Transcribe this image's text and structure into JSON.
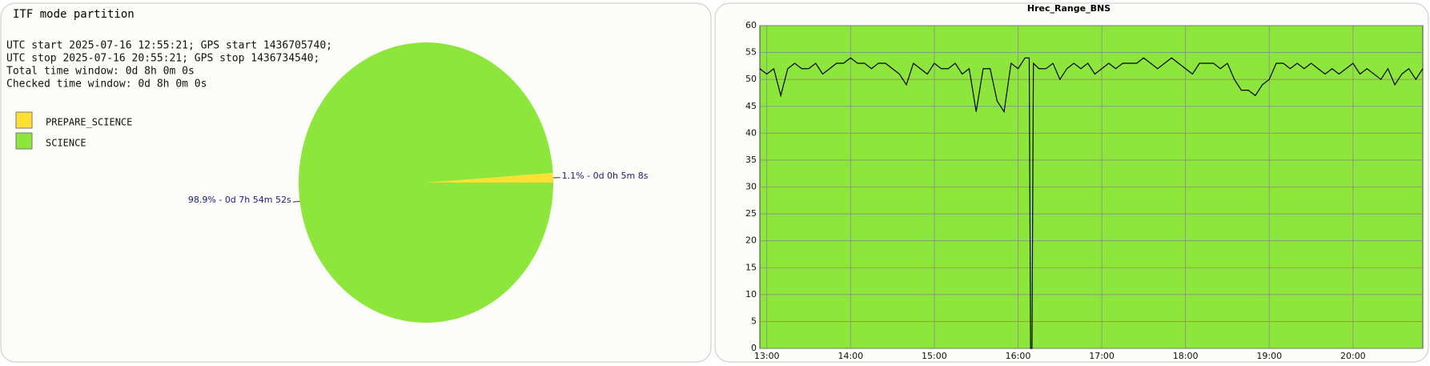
{
  "chart_data": [
    {
      "type": "pie",
      "title": "ITF mode partition",
      "info": [
        "UTC start 2025-07-16 12:55:21; GPS start 1436705740;",
        "UTC stop 2025-07-16 20:55:21; GPS stop 1436734540;",
        "Total time window: 0d 8h 0m 0s",
        "Checked time window: 0d 8h 0m 0s"
      ],
      "categories": [
        "PREPARE_SCIENCE",
        "SCIENCE"
      ],
      "values": [
        1.1,
        98.9
      ],
      "value_labels": [
        "1.1% - 0d 0h 5m 8s",
        "98.9% - 0d 7h 54m 52s"
      ],
      "colors": [
        "#ffe033",
        "#8de63c"
      ]
    },
    {
      "type": "line",
      "title": "Hrec_Range_BNS",
      "x": [
        "12:55",
        "13:00",
        "13:05",
        "13:10",
        "13:15",
        "13:20",
        "13:25",
        "13:30",
        "13:35",
        "13:40",
        "13:45",
        "13:50",
        "13:55",
        "14:00",
        "14:05",
        "14:10",
        "14:15",
        "14:20",
        "14:25",
        "14:30",
        "14:35",
        "14:40",
        "14:45",
        "14:50",
        "14:55",
        "15:00",
        "15:05",
        "15:10",
        "15:15",
        "15:20",
        "15:25",
        "15:30",
        "15:35",
        "15:40",
        "15:45",
        "15:50",
        "15:55",
        "16:00",
        "16:05",
        "16:08",
        "16:09",
        "16:10",
        "16:11",
        "16:15",
        "16:20",
        "16:25",
        "16:30",
        "16:35",
        "16:40",
        "16:45",
        "16:50",
        "16:55",
        "17:00",
        "17:05",
        "17:10",
        "17:15",
        "17:20",
        "17:25",
        "17:30",
        "17:35",
        "17:40",
        "17:45",
        "17:50",
        "17:55",
        "18:00",
        "18:05",
        "18:10",
        "18:15",
        "18:20",
        "18:25",
        "18:30",
        "18:35",
        "18:40",
        "18:45",
        "18:50",
        "18:55",
        "19:00",
        "19:05",
        "19:10",
        "19:15",
        "19:20",
        "19:25",
        "19:30",
        "19:35",
        "19:40",
        "19:45",
        "19:50",
        "19:55",
        "20:00",
        "20:05",
        "20:10",
        "20:15",
        "20:20",
        "20:25",
        "20:30",
        "20:35",
        "20:40",
        "20:45",
        "20:50"
      ],
      "series": [
        {
          "name": "Hrec_Range_BNS",
          "color": "#000000",
          "values": [
            52,
            51,
            52,
            47,
            52,
            53,
            52,
            52,
            53,
            51,
            52,
            53,
            53,
            54,
            53,
            53,
            52,
            53,
            53,
            52,
            51,
            49,
            53,
            52,
            51,
            53,
            52,
            52,
            53,
            51,
            52,
            44,
            52,
            52,
            46,
            44,
            53,
            52,
            54,
            54,
            0,
            0,
            53,
            52,
            52,
            53,
            50,
            52,
            53,
            52,
            53,
            51,
            52,
            53,
            52,
            53,
            53,
            53,
            54,
            53,
            52,
            53,
            54,
            53,
            52,
            51,
            53,
            53,
            53,
            52,
            53,
            50,
            48,
            48,
            47,
            49,
            50,
            53,
            53,
            52,
            53,
            52,
            53,
            52,
            51,
            52,
            51,
            52,
            53,
            51,
            52,
            51,
            50,
            52,
            49,
            51,
            52,
            50,
            52
          ]
        }
      ],
      "xlim": [
        "12:55",
        "20:50"
      ],
      "xticks": [
        "13:00",
        "14:00",
        "15:00",
        "16:00",
        "17:00",
        "18:00",
        "19:00",
        "20:00"
      ],
      "ylim": [
        0,
        60
      ],
      "yticks": [
        0,
        5,
        10,
        15,
        20,
        25,
        30,
        35,
        40,
        45,
        50,
        55,
        60
      ],
      "grid": true,
      "background": "#8de63c"
    }
  ]
}
